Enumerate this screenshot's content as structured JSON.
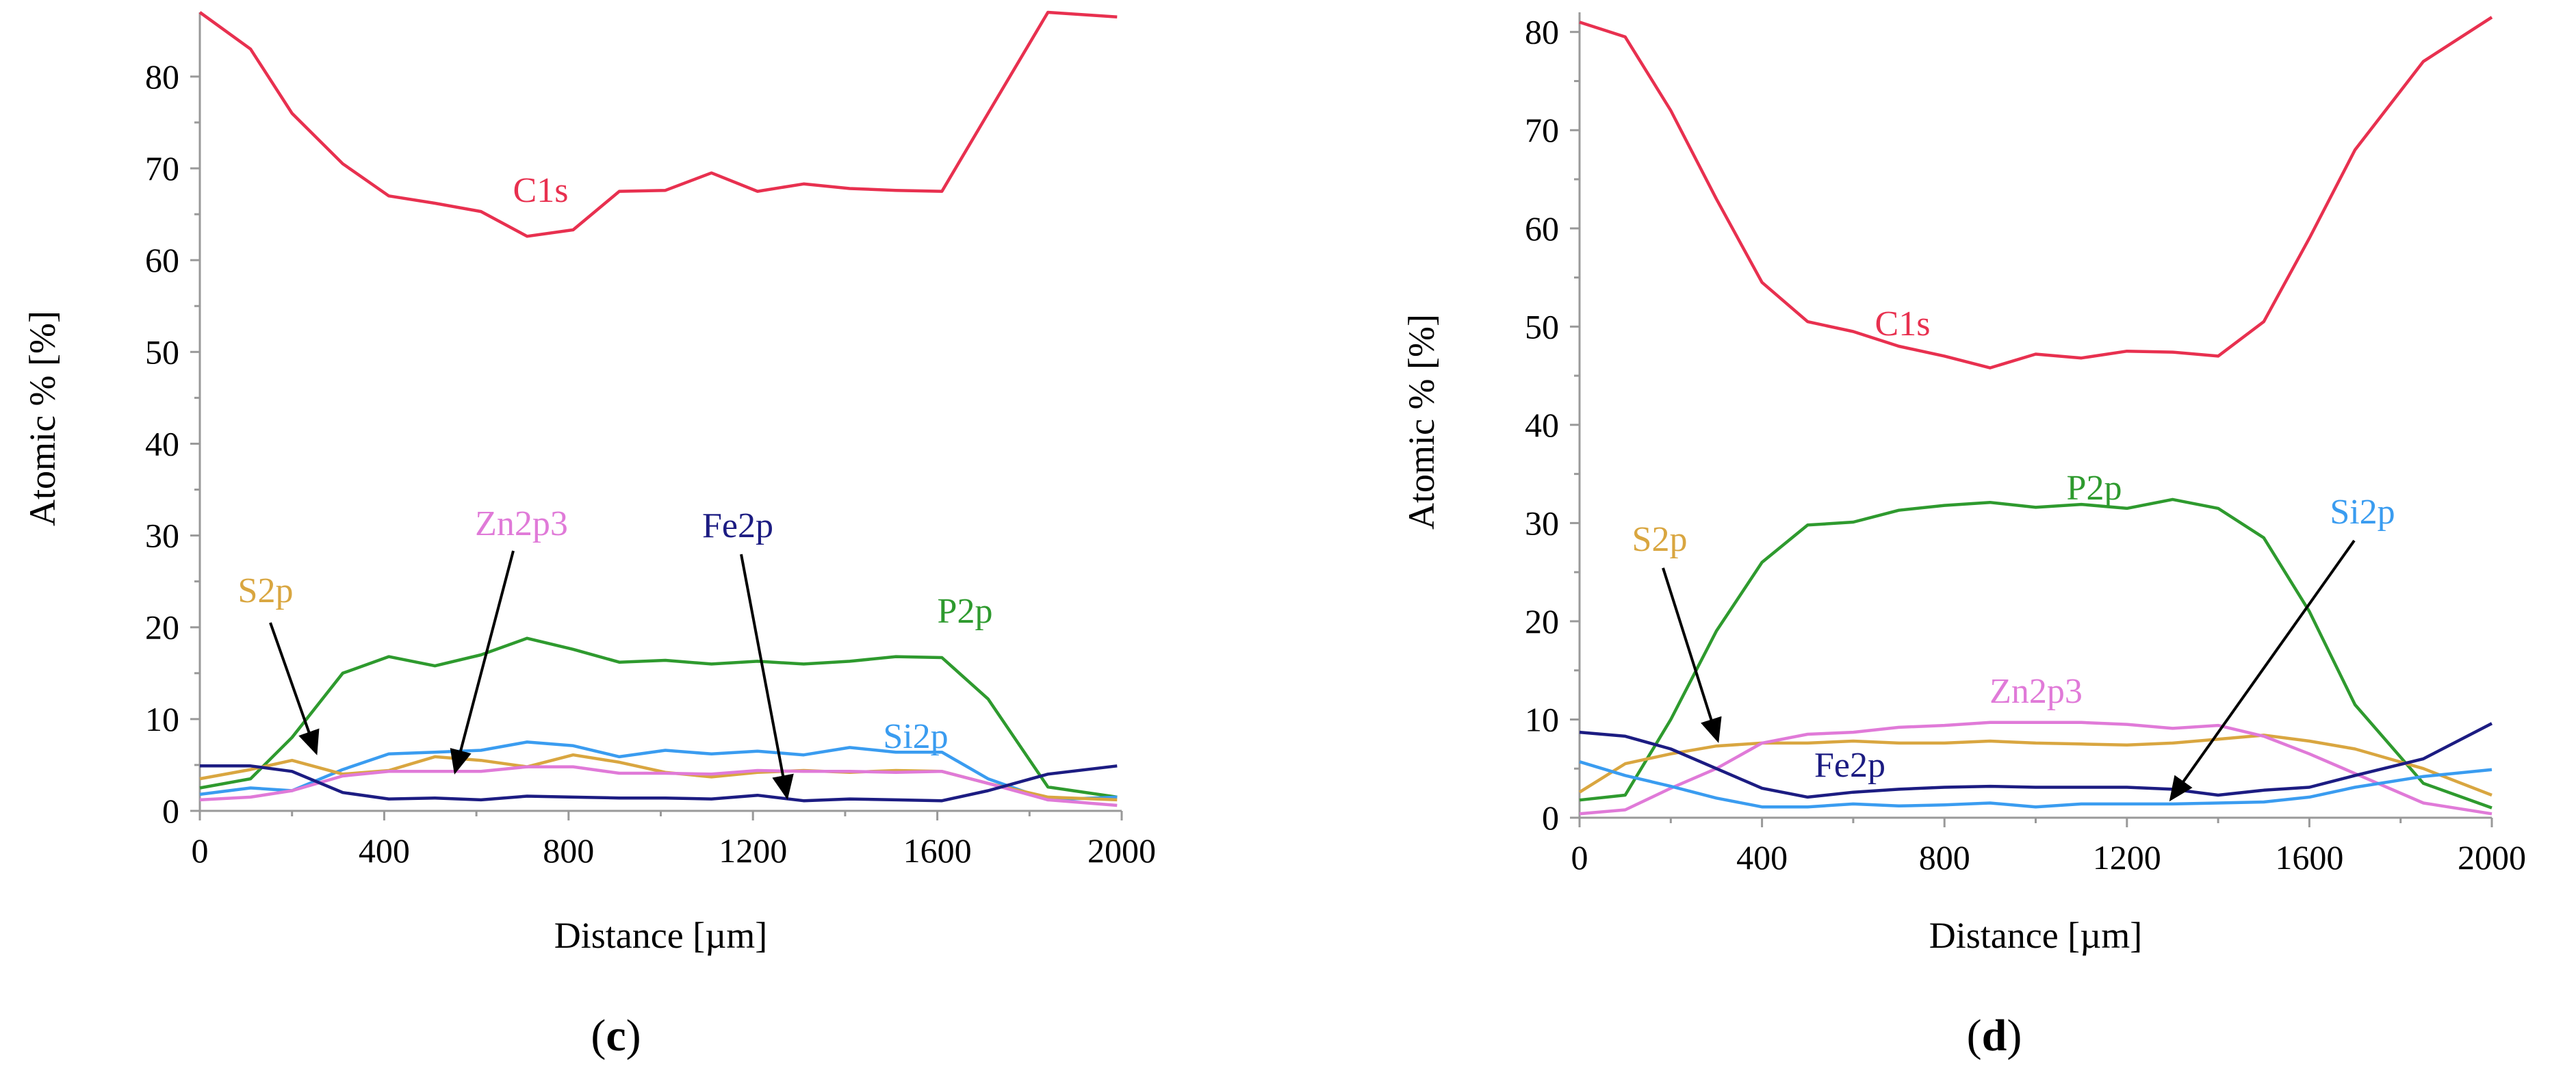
{
  "chart_data": [
    {
      "id": "c",
      "panel_label": "c",
      "type": "line",
      "title": "",
      "xlabel": "Distance [µm]",
      "ylabel": "Atomic % [%]",
      "xlim": [
        0,
        2000
      ],
      "ylim": [
        0,
        87
      ],
      "xticks": [
        0,
        400,
        800,
        1200,
        1600,
        2000
      ],
      "yticks": [
        0,
        10,
        20,
        30,
        40,
        50,
        60,
        70,
        80
      ],
      "x": [
        0,
        110,
        200,
        310,
        410,
        510,
        610,
        710,
        810,
        910,
        1010,
        1110,
        1210,
        1310,
        1410,
        1510,
        1610,
        1710,
        1840,
        1990
      ],
      "series": [
        {
          "name": "C1s",
          "color": "#e8304f",
          "values": [
            87,
            83,
            76,
            70.5,
            67,
            66.2,
            65.3,
            62.6,
            63.3,
            67.5,
            67.6,
            69.5,
            67.5,
            68.3,
            67.8,
            67.6,
            67.5,
            76,
            87,
            86.5
          ]
        },
        {
          "name": "P2p",
          "color": "#2e9a2e",
          "values": [
            2.5,
            3.5,
            8,
            15,
            16.8,
            15.8,
            17,
            18.8,
            17.6,
            16.2,
            16.4,
            16,
            16.3,
            16,
            16.3,
            16.8,
            16.7,
            12.2,
            2.6,
            1.5
          ]
        },
        {
          "name": "Si2p",
          "color": "#3a9cf0",
          "values": [
            1.8,
            2.5,
            2.2,
            4.5,
            6.2,
            6.4,
            6.6,
            7.5,
            7.1,
            5.9,
            6.6,
            6.2,
            6.5,
            6.1,
            6.9,
            6.4,
            6.4,
            3.5,
            1.2,
            1.5
          ]
        },
        {
          "name": "S2p",
          "color": "#d9a640",
          "values": [
            3.5,
            4.5,
            5.5,
            4,
            4.4,
            5.9,
            5.5,
            4.8,
            6.1,
            5.3,
            4.2,
            3.7,
            4.2,
            4.4,
            4.2,
            4.4,
            4.3,
            3,
            1.5,
            1.2
          ]
        },
        {
          "name": "Zn2p3",
          "color": "#e07ad8",
          "values": [
            1.2,
            1.5,
            2.2,
            3.8,
            4.3,
            4.3,
            4.3,
            4.8,
            4.8,
            4.1,
            4.1,
            4,
            4.4,
            4.3,
            4.3,
            4.2,
            4.3,
            3,
            1.2,
            0.6
          ]
        },
        {
          "name": "Fe2p",
          "color": "#1c1c82",
          "values": [
            4.9,
            4.9,
            4.3,
            2,
            1.3,
            1.4,
            1.2,
            1.6,
            1.5,
            1.4,
            1.4,
            1.3,
            1.7,
            1.1,
            1.3,
            1.2,
            1.1,
            2.2,
            4,
            4.9
          ]
        }
      ],
      "annotations": [
        {
          "text": "C1s",
          "color": "#e8304f",
          "arrow": false
        },
        {
          "text": "P2p",
          "color": "#2e9a2e",
          "arrow": false
        },
        {
          "text": "Si2p",
          "color": "#3a9cf0",
          "arrow": false
        },
        {
          "text": "S2p",
          "color": "#d9a640",
          "arrow": true
        },
        {
          "text": "Zn2p3",
          "color": "#e07ad8",
          "arrow": true
        },
        {
          "text": "Fe2p",
          "color": "#1c1c82",
          "arrow": true
        }
      ]
    },
    {
      "id": "d",
      "panel_label": "d",
      "type": "line",
      "title": "",
      "xlabel": "Distance [µm]",
      "ylabel": "Atomic % [%]",
      "xlim": [
        0,
        2000
      ],
      "ylim": [
        0,
        82
      ],
      "xticks": [
        0,
        400,
        800,
        1200,
        1600,
        2000
      ],
      "yticks": [
        0,
        10,
        20,
        30,
        40,
        50,
        60,
        70,
        80
      ],
      "x": [
        0,
        100,
        200,
        300,
        400,
        500,
        600,
        700,
        800,
        900,
        1000,
        1100,
        1200,
        1300,
        1400,
        1500,
        1600,
        1700,
        1850,
        2000
      ],
      "series": [
        {
          "name": "C1s",
          "color": "#e8304f",
          "values": [
            81,
            79.5,
            72,
            63,
            54.5,
            50.5,
            49.5,
            48,
            47,
            45.8,
            47.2,
            46.8,
            47.5,
            47.4,
            47,
            50.5,
            59,
            68,
            77,
            81.5
          ]
        },
        {
          "name": "P2p",
          "color": "#2e9a2e",
          "values": [
            1.8,
            2.3,
            10,
            19,
            26,
            29.8,
            30.1,
            31.3,
            31.8,
            32.1,
            31.6,
            31.9,
            31.5,
            32.4,
            31.5,
            28.5,
            21,
            11.5,
            3.5,
            1
          ]
        },
        {
          "name": "S2p",
          "color": "#d9a640",
          "values": [
            2.6,
            5.5,
            6.5,
            7.3,
            7.6,
            7.6,
            7.8,
            7.6,
            7.6,
            7.8,
            7.6,
            7.5,
            7.4,
            7.6,
            8,
            8.4,
            7.8,
            7,
            5,
            2.3
          ]
        },
        {
          "name": "Zn2p3",
          "color": "#e07ad8",
          "values": [
            0.4,
            0.8,
            3,
            5,
            7.6,
            8.5,
            8.7,
            9.2,
            9.4,
            9.7,
            9.7,
            9.7,
            9.5,
            9.1,
            9.4,
            8.3,
            6.5,
            4.5,
            1.5,
            0.4
          ]
        },
        {
          "name": "Fe2p",
          "color": "#1c1c82",
          "values": [
            8.7,
            8.3,
            7,
            5,
            3,
            2.1,
            2.6,
            2.9,
            3.1,
            3.2,
            3.1,
            3.1,
            3.1,
            2.9,
            2.3,
            2.8,
            3.1,
            4.3,
            6,
            9.6
          ]
        },
        {
          "name": "Si2p",
          "color": "#3a9cf0",
          "values": [
            5.7,
            4.3,
            3.2,
            2,
            1.1,
            1.1,
            1.4,
            1.2,
            1.3,
            1.5,
            1.1,
            1.4,
            1.4,
            1.4,
            1.5,
            1.6,
            2.1,
            3.1,
            4.2,
            4.9
          ]
        }
      ],
      "annotations": [
        {
          "text": "C1s",
          "color": "#e8304f",
          "arrow": false
        },
        {
          "text": "P2p",
          "color": "#2e9a2e",
          "arrow": false
        },
        {
          "text": "Si2p",
          "color": "#3a9cf0",
          "arrow": true
        },
        {
          "text": "S2p",
          "color": "#d9a640",
          "arrow": true
        },
        {
          "text": "Zn2p3",
          "color": "#e07ad8",
          "arrow": false
        },
        {
          "text": "Fe2p",
          "color": "#1c1c82",
          "arrow": false
        }
      ]
    }
  ]
}
